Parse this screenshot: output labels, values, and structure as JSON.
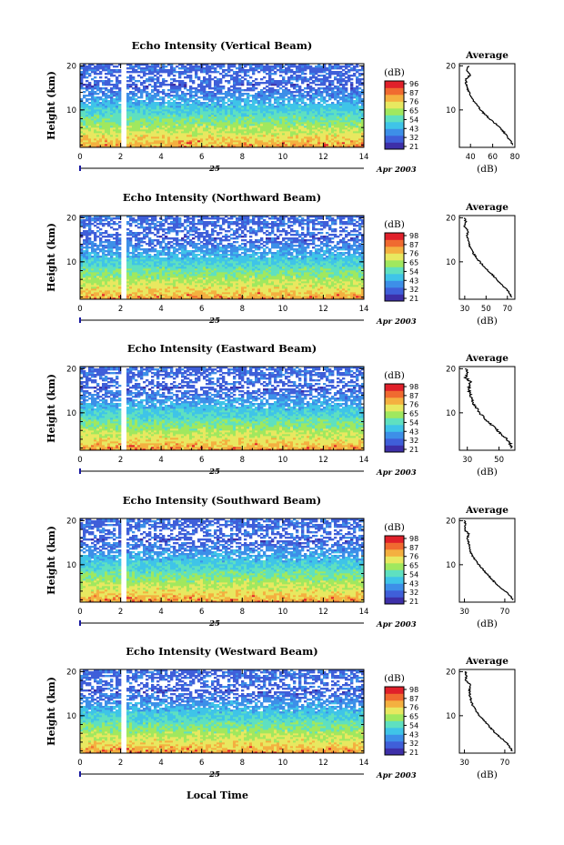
{
  "figure": {
    "xlabel": "Local Time",
    "date_day": "25",
    "date_month_year": "Apr 2003"
  },
  "colors": {
    "palette": [
      "#3d2fa8",
      "#3f5fd9",
      "#3d8fe8",
      "#3fc4e8",
      "#5fe0c0",
      "#a0e85f",
      "#e8e860",
      "#f4b040",
      "#f06a30",
      "#e0202a"
    ],
    "gap": "#ffffff",
    "line": "#000000"
  },
  "chart_data": [
    {
      "type": "heatmap",
      "title": "Echo Intensity (Vertical Beam)",
      "xlabel": "",
      "ylabel": "Height (km)",
      "xlim": [
        0,
        14
      ],
      "ylim": [
        1.5,
        20.5
      ],
      "xticks": [
        "0",
        "2",
        "4",
        "6",
        "8",
        "10",
        "12",
        "14"
      ],
      "yticks": [
        "10",
        "20"
      ],
      "colorbar_unit": "(dB)",
      "colorbar_ticks": [
        "96",
        "87",
        "76",
        "65",
        "54",
        "43",
        "32",
        "21"
      ],
      "data_gap_hours": [
        2.0,
        2.3
      ],
      "profile": {
        "title": "Average",
        "xlabel": "(dB)",
        "xticks": [
          "40",
          "60",
          "80"
        ],
        "xlim": [
          30,
          80
        ],
        "yticks": [
          "10",
          "20"
        ],
        "heights_km": [
          2,
          3,
          4,
          5,
          6,
          7,
          8,
          9,
          10,
          11,
          12,
          13,
          14,
          15,
          16,
          17,
          18,
          19,
          20
        ],
        "values_db": [
          78,
          76,
          73,
          70,
          66,
          62,
          57,
          53,
          49,
          46,
          43,
          41,
          39,
          37,
          36,
          36,
          40,
          37,
          38
        ]
      }
    },
    {
      "type": "heatmap",
      "title": "Echo Intensity (Northward Beam)",
      "xlabel": "",
      "ylabel": "Height (km)",
      "xlim": [
        0,
        14
      ],
      "ylim": [
        1.5,
        20.5
      ],
      "xticks": [
        "0",
        "2",
        "4",
        "6",
        "8",
        "10",
        "12",
        "14"
      ],
      "yticks": [
        "10",
        "20"
      ],
      "colorbar_unit": "(dB)",
      "colorbar_ticks": [
        "98",
        "87",
        "76",
        "65",
        "54",
        "43",
        "32",
        "21"
      ],
      "data_gap_hours": [
        2.0,
        2.3
      ],
      "profile": {
        "title": "Average",
        "xlabel": "(dB)",
        "xticks": [
          "30",
          "50",
          "70"
        ],
        "xlim": [
          25,
          77
        ],
        "yticks": [
          "10",
          "20"
        ],
        "heights_km": [
          2,
          3,
          4,
          5,
          6,
          7,
          8,
          9,
          10,
          11,
          12,
          13,
          14,
          15,
          16,
          17,
          18,
          19,
          20
        ],
        "values_db": [
          74,
          72,
          68,
          64,
          60,
          56,
          52,
          48,
          44,
          41,
          38,
          36,
          34,
          33,
          32,
          33,
          30,
          31,
          30
        ]
      }
    },
    {
      "type": "heatmap",
      "title": "Echo Intensity (Eastward Beam)",
      "xlabel": "",
      "ylabel": "Height (km)",
      "xlim": [
        0,
        14
      ],
      "ylim": [
        1.5,
        20.5
      ],
      "xticks": [
        "0",
        "2",
        "4",
        "6",
        "8",
        "10",
        "12",
        "14"
      ],
      "yticks": [
        "10",
        "20"
      ],
      "colorbar_unit": "(dB)",
      "colorbar_ticks": [
        "98",
        "87",
        "76",
        "65",
        "54",
        "43",
        "32",
        "21"
      ],
      "data_gap_hours": [
        2.0,
        2.3
      ],
      "profile": {
        "title": "Average",
        "xlabel": "(dB)",
        "xticks": [
          "30",
          "50"
        ],
        "xlim": [
          25,
          60
        ],
        "yticks": [
          "10",
          "20"
        ],
        "heights_km": [
          2,
          3,
          4,
          5,
          6,
          7,
          8,
          9,
          10,
          11,
          12,
          13,
          14,
          15,
          16,
          17,
          18,
          19,
          20
        ],
        "values_db": [
          58,
          57,
          55,
          52,
          49,
          46,
          43,
          40,
          38,
          36,
          34,
          33,
          32,
          31,
          31,
          32,
          29,
          30,
          29
        ]
      }
    },
    {
      "type": "heatmap",
      "title": "Echo Intensity (Southward Beam)",
      "xlabel": "",
      "ylabel": "Height (km)",
      "xlim": [
        0,
        14
      ],
      "ylim": [
        1.5,
        20.5
      ],
      "xticks": [
        "0",
        "2",
        "4",
        "6",
        "8",
        "10",
        "12",
        "14"
      ],
      "yticks": [
        "10",
        "20"
      ],
      "colorbar_unit": "(dB)",
      "colorbar_ticks": [
        "98",
        "87",
        "76",
        "65",
        "54",
        "43",
        "32",
        "21"
      ],
      "data_gap_hours": [
        2.0,
        2.3
      ],
      "profile": {
        "title": "Average",
        "xlabel": "(dB)",
        "xticks": [
          "30",
          "70"
        ],
        "xlim": [
          25,
          80
        ],
        "yticks": [
          "10",
          "20"
        ],
        "heights_km": [
          2,
          3,
          4,
          5,
          6,
          7,
          8,
          9,
          10,
          11,
          12,
          13,
          14,
          15,
          16,
          17,
          18,
          19,
          20
        ],
        "values_db": [
          78,
          75,
          70,
          65,
          60,
          56,
          52,
          48,
          44,
          41,
          38,
          36,
          35,
          34,
          33,
          34,
          30,
          31,
          30
        ]
      }
    },
    {
      "type": "heatmap",
      "title": "Echo Intensity (Westward Beam)",
      "xlabel": "Local Time",
      "ylabel": "Height (km)",
      "xlim": [
        0,
        14
      ],
      "ylim": [
        1.5,
        20.5
      ],
      "xticks": [
        "0",
        "2",
        "4",
        "6",
        "8",
        "10",
        "12",
        "14"
      ],
      "yticks": [
        "10",
        "20"
      ],
      "colorbar_unit": "(dB)",
      "colorbar_ticks": [
        "98",
        "87",
        "76",
        "65",
        "54",
        "43",
        "32",
        "21"
      ],
      "data_gap_hours": [
        2.0,
        2.3
      ],
      "profile": {
        "title": "Average",
        "xlabel": "(dB)",
        "xticks": [
          "30",
          "70"
        ],
        "xlim": [
          25,
          80
        ],
        "yticks": [
          "10",
          "20"
        ],
        "heights_km": [
          2,
          3,
          4,
          5,
          6,
          7,
          8,
          9,
          10,
          11,
          12,
          13,
          14,
          15,
          16,
          17,
          18,
          19,
          20
        ],
        "values_db": [
          77,
          75,
          71,
          66,
          61,
          57,
          53,
          49,
          45,
          42,
          39,
          37,
          36,
          35,
          35,
          36,
          31,
          32,
          31
        ]
      }
    }
  ]
}
